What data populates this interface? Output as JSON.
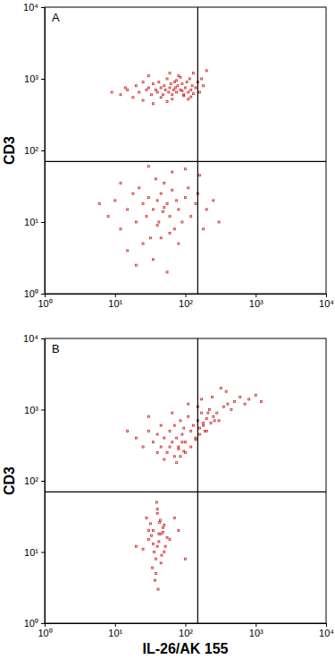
{
  "chart_data": [
    {
      "type": "scatter",
      "title": "A",
      "ylabel": "CD3",
      "log": true,
      "color": "#cc2222",
      "marker": "square",
      "xlim": [
        1,
        10000
      ],
      "ylim": [
        1,
        10000
      ],
      "xticks": [
        {
          "value": 1,
          "label": "10⁰"
        },
        {
          "value": 10,
          "label": "10¹"
        },
        {
          "value": 100,
          "label": "10²"
        },
        {
          "value": 1000,
          "label": "10³"
        },
        {
          "value": 10000,
          "label": "10⁴"
        }
      ],
      "yticks": [
        {
          "value": 1,
          "label": "10⁰"
        },
        {
          "value": 10,
          "label": "10¹"
        },
        {
          "value": 100,
          "label": "10²"
        },
        {
          "value": 1000,
          "label": "10³"
        },
        {
          "value": 10000,
          "label": "10⁴"
        }
      ],
      "gates": {
        "x": 150,
        "y": 70
      },
      "x": [
        12,
        15,
        18,
        20,
        22,
        25,
        28,
        30,
        33,
        35,
        38,
        40,
        42,
        45,
        48,
        50,
        52,
        55,
        58,
        60,
        62,
        65,
        68,
        70,
        72,
        75,
        78,
        80,
        85,
        90,
        95,
        100,
        105,
        110,
        115,
        120,
        125,
        130,
        140,
        150,
        160,
        170,
        180,
        200,
        25,
        35,
        45,
        55,
        65,
        75,
        85,
        95,
        110,
        130,
        9,
        14,
        30,
        60,
        90,
        120,
        8,
        10,
        12,
        15,
        18,
        20,
        22,
        25,
        28,
        30,
        32,
        35,
        38,
        40,
        42,
        45,
        48,
        50,
        55,
        60,
        65,
        70,
        75,
        80,
        90,
        100,
        110,
        120,
        140,
        160,
        180,
        200,
        250,
        300,
        15,
        25,
        35,
        45,
        55,
        65,
        30,
        40,
        50,
        20,
        60,
        6,
        12,
        80,
        150,
        100
      ],
      "values": [
        600,
        700,
        550,
        800,
        650,
        900,
        700,
        750,
        600,
        850,
        700,
        650,
        900,
        750,
        600,
        800,
        700,
        1000,
        650,
        750,
        850,
        600,
        700,
        900,
        750,
        650,
        800,
        1100,
        700,
        850,
        600,
        750,
        900,
        650,
        1000,
        700,
        800,
        1200,
        750,
        900,
        650,
        1000,
        800,
        1300,
        500,
        450,
        550,
        480,
        520,
        950,
        1050,
        580,
        520,
        620,
        650,
        750,
        1100,
        1200,
        680,
        560,
        12,
        20,
        8,
        15,
        25,
        10,
        30,
        18,
        12,
        22,
        6,
        15,
        40,
        20,
        10,
        25,
        14,
        35,
        18,
        12,
        28,
        8,
        20,
        15,
        10,
        22,
        30,
        12,
        18,
        45,
        8,
        15,
        20,
        10,
        4,
        5,
        3,
        6,
        2,
        50,
        60,
        9,
        16,
        2.5,
        7,
        18,
        35,
        5,
        25,
        55
      ]
    },
    {
      "type": "scatter",
      "title": "B",
      "ylabel": "CD3",
      "xlabel": "IL-26/AK 155",
      "log": true,
      "color": "#cc2222",
      "marker": "square",
      "xlim": [
        1,
        10000
      ],
      "ylim": [
        1,
        10000
      ],
      "xticks": [
        {
          "value": 1,
          "label": "10⁰"
        },
        {
          "value": 10,
          "label": "10¹"
        },
        {
          "value": 100,
          "label": "10²"
        },
        {
          "value": 1000,
          "label": "10³"
        },
        {
          "value": 10000,
          "label": "10⁴"
        }
      ],
      "yticks": [
        {
          "value": 1,
          "label": "10⁰"
        },
        {
          "value": 10,
          "label": "10¹"
        },
        {
          "value": 100,
          "label": "10²"
        },
        {
          "value": 1000,
          "label": "10³"
        },
        {
          "value": 10000,
          "label": "10⁴"
        }
      ],
      "gates": {
        "x": 150,
        "y": 70
      },
      "x": [
        20,
        25,
        30,
        35,
        40,
        45,
        50,
        55,
        60,
        65,
        70,
        75,
        80,
        85,
        90,
        95,
        100,
        110,
        120,
        130,
        140,
        150,
        160,
        170,
        180,
        190,
        200,
        220,
        250,
        280,
        300,
        350,
        400,
        450,
        500,
        600,
        700,
        800,
        1000,
        1200,
        40,
        50,
        60,
        70,
        80,
        90,
        100,
        120,
        140,
        160,
        180,
        200,
        230,
        260,
        15,
        30,
        45,
        65,
        110,
        150,
        75,
        85,
        95,
        170,
        210,
        240,
        320,
        380,
        30,
        35,
        40,
        45,
        50,
        32,
        38,
        42,
        48,
        55,
        28,
        36,
        44,
        52,
        34,
        40,
        46,
        30,
        38,
        42,
        35,
        45,
        50,
        40,
        60,
        25,
        33,
        48,
        37,
        43,
        80,
        100,
        20,
        70,
        41,
        39
      ],
      "values": [
        400,
        300,
        500,
        350,
        450,
        300,
        400,
        250,
        500,
        350,
        600,
        400,
        300,
        700,
        450,
        550,
        350,
        800,
        500,
        600,
        400,
        700,
        550,
        900,
        650,
        500,
        750,
        1000,
        800,
        900,
        700,
        1100,
        1200,
        1000,
        1300,
        1500,
        1200,
        1400,
        1600,
        1300,
        250,
        200,
        300,
        220,
        280,
        350,
        250,
        300,
        380,
        450,
        600,
        500,
        650,
        700,
        500,
        800,
        600,
        900,
        1200,
        1100,
        180,
        220,
        260,
        1400,
        900,
        1500,
        2000,
        1800,
        15,
        20,
        12,
        18,
        10,
        25,
        8,
        14,
        22,
        16,
        30,
        10,
        28,
        12,
        6,
        35,
        9,
        20,
        5,
        18,
        13,
        7,
        24,
        40,
        15,
        11,
        17,
        19,
        4,
        26,
        20,
        8,
        12,
        30,
        3,
        50
      ]
    }
  ]
}
